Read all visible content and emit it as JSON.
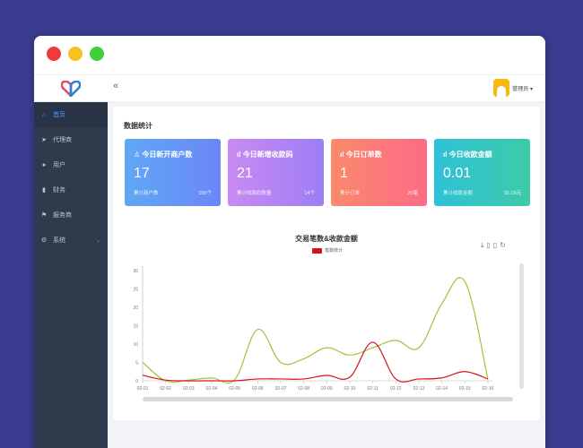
{
  "window": {
    "controls": [
      "close",
      "minimize",
      "maximize"
    ]
  },
  "sidebar": {
    "logo": "heart-logo",
    "items": [
      {
        "icon": "home-icon",
        "label": "首页",
        "active": true
      },
      {
        "icon": "send-icon",
        "label": "代理商"
      },
      {
        "icon": "user-icon",
        "label": "用户"
      },
      {
        "icon": "bar-chart-icon",
        "label": "财务"
      },
      {
        "icon": "flag-icon",
        "label": "服务商"
      },
      {
        "icon": "gear-icon",
        "label": "系统",
        "has_children": true
      }
    ]
  },
  "topbar": {
    "collapse": "«",
    "username": "管理员",
    "caret": "▾"
  },
  "dashboard": {
    "title": "数据统计",
    "cards": [
      {
        "title": "今日新开商户数",
        "value": "17",
        "footer": "累计商户数",
        "total": "150个"
      },
      {
        "title": "今日新增收款码",
        "value": "21",
        "footer": "累计收款码数量",
        "total": "14个"
      },
      {
        "title": "今日订单数",
        "value": "1",
        "footer": "累计订单",
        "total": "20笔"
      },
      {
        "title": "今日收款金额",
        "value": "0.01",
        "footer": "累计收款金额",
        "total": "32.15元"
      }
    ]
  },
  "chart_data": {
    "type": "line",
    "title": "交易笔数&收款金额",
    "legend": [
      "笔数统计"
    ],
    "categories": [
      "02-01",
      "02-02",
      "02-03",
      "02-04",
      "02-05",
      "02-06",
      "02-07",
      "02-08",
      "02-09",
      "02-10",
      "02-11",
      "02-12",
      "02-13",
      "02-14",
      "02-15",
      "02-16"
    ],
    "ylim": [
      0,
      30
    ],
    "yticks": [
      0,
      5,
      10,
      15,
      20,
      25,
      30
    ],
    "grid": false,
    "series": [
      {
        "color": "#9bc63c",
        "values": [
          5,
          0,
          0.2,
          0.8,
          0.3,
          14,
          5,
          6,
          9,
          7,
          9,
          11,
          9,
          21,
          27,
          0.5
        ]
      },
      {
        "name": "笔数统计",
        "color": "#d9121b",
        "values": [
          1.5,
          0.2,
          0,
          0,
          0,
          0.5,
          0.5,
          0.5,
          1.5,
          1,
          10.5,
          0.5,
          0.5,
          0.8,
          2.5,
          0.5
        ]
      }
    ]
  }
}
